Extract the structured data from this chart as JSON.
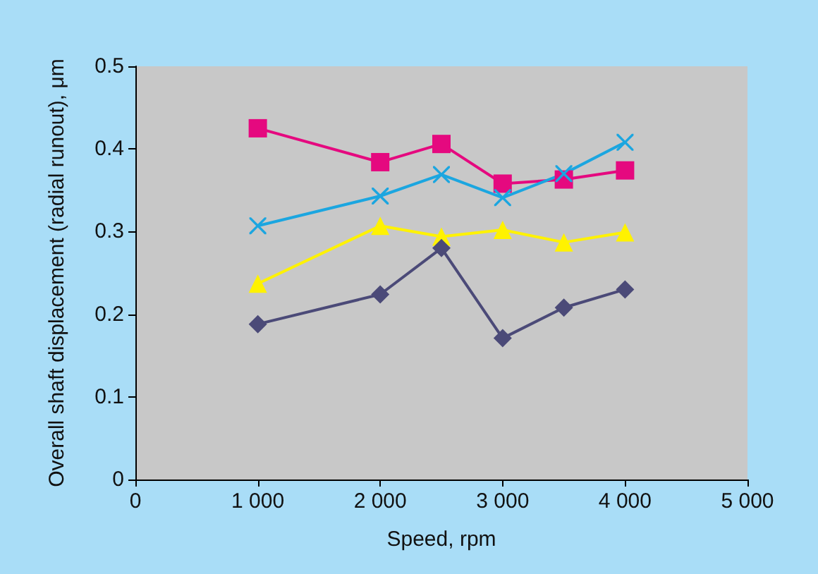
{
  "chart_data": {
    "type": "line",
    "xlabel": "Speed, rpm",
    "ylabel": "Overall shaft displacement (radial runout), μm",
    "xlim": [
      0,
      5000
    ],
    "xticks": [
      0,
      {
        "value": 1000,
        "label": "1 000"
      },
      {
        "value": 2000,
        "label": "2 000"
      },
      {
        "value": 3000,
        "label": "3 000"
      },
      {
        "value": 4000,
        "label": "4 000"
      },
      {
        "value": 5000,
        "label": "5 000"
      }
    ],
    "ylim": [
      0,
      0.5
    ],
    "yticks": [
      0,
      0.1,
      0.2,
      0.3,
      0.4,
      0.5
    ],
    "grid": false,
    "x": [
      1000,
      2000,
      2500,
      3000,
      3500,
      4000
    ],
    "series": [
      {
        "color": "#e5097f",
        "marker": "square",
        "values": [
          0.425,
          0.384,
          0.406,
          0.358,
          0.363,
          0.374
        ]
      },
      {
        "color": "#1ba6e0",
        "marker": "cross",
        "values": [
          0.307,
          0.343,
          0.369,
          0.341,
          0.37,
          0.408
        ]
      },
      {
        "color": "#fff200",
        "marker": "triangle",
        "values": [
          0.237,
          0.307,
          0.294,
          0.302,
          0.287,
          0.299
        ]
      },
      {
        "color": "#4b4a78",
        "marker": "diamond",
        "values": [
          0.188,
          0.224,
          0.28,
          0.171,
          0.208,
          0.23
        ]
      }
    ]
  }
}
